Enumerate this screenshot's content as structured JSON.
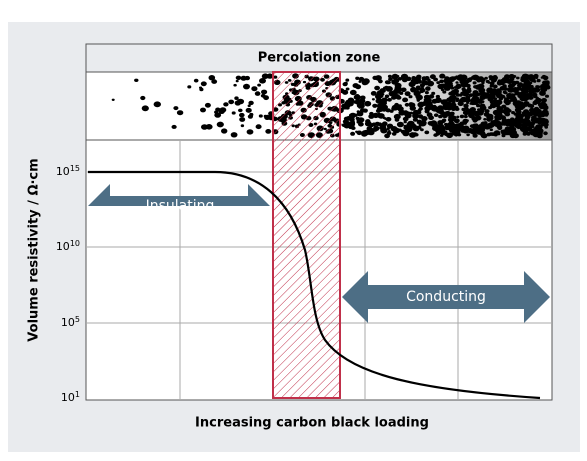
{
  "diagram": {
    "zone_label": "Percolation zone",
    "y_axis": {
      "label": "Volume resistivity / Ω·cm",
      "ticks": [
        {
          "base": "10",
          "exponent": "15"
        },
        {
          "base": "10",
          "exponent": "10"
        },
        {
          "base": "10",
          "exponent": "5"
        },
        {
          "base": "10",
          "exponent": "1"
        }
      ]
    },
    "x_axis": {
      "label": "Increasing carbon black loading"
    },
    "arrows": [
      {
        "label": "Insulating"
      },
      {
        "label": "Conducting"
      }
    ]
  }
}
